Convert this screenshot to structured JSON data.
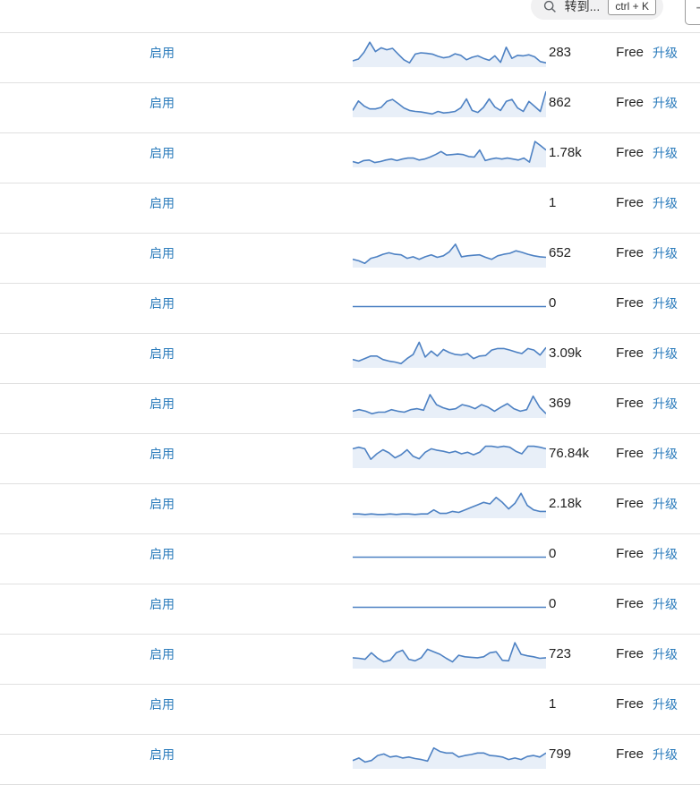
{
  "topbar": {
    "search_placeholder": "转到...",
    "shortcut": "ctrl + K",
    "add_label": "+"
  },
  "colors": {
    "link": "#2c7cbc",
    "text": "#222222",
    "spark_line": "#4d81c3",
    "spark_fill": "#e8eff8",
    "border": "#e0e0e0"
  },
  "table": {
    "rows": [
      {
        "status": "启用",
        "value": "283",
        "plan": "Free",
        "upgrade": "升级",
        "flat": false,
        "spark": [
          0.18,
          0.25,
          0.52,
          0.92,
          0.55,
          0.7,
          0.62,
          0.68,
          0.45,
          0.22,
          0.1,
          0.45,
          0.5,
          0.48,
          0.45,
          0.36,
          0.3,
          0.34,
          0.46,
          0.4,
          0.22,
          0.32,
          0.38,
          0.28,
          0.2,
          0.38,
          0.12,
          0.72,
          0.28,
          0.4,
          0.38,
          0.42,
          0.34,
          0.15,
          0.1
        ]
      },
      {
        "status": "启用",
        "value": "862",
        "plan": "Free",
        "upgrade": "升级",
        "flat": false,
        "spark": [
          0.2,
          0.58,
          0.38,
          0.26,
          0.26,
          0.32,
          0.56,
          0.64,
          0.48,
          0.3,
          0.2,
          0.16,
          0.14,
          0.1,
          0.06,
          0.16,
          0.1,
          0.12,
          0.16,
          0.3,
          0.66,
          0.2,
          0.12,
          0.32,
          0.66,
          0.34,
          0.2,
          0.56,
          0.64,
          0.3,
          0.16,
          0.56,
          0.36,
          0.16,
          0.96
        ]
      },
      {
        "status": "启用",
        "value": "1.78k",
        "plan": "Free",
        "upgrade": "升级",
        "flat": false,
        "spark": [
          0.16,
          0.1,
          0.2,
          0.22,
          0.12,
          0.16,
          0.22,
          0.26,
          0.2,
          0.26,
          0.3,
          0.3,
          0.22,
          0.26,
          0.34,
          0.44,
          0.56,
          0.42,
          0.44,
          0.46,
          0.44,
          0.36,
          0.34,
          0.62,
          0.2,
          0.26,
          0.3,
          0.26,
          0.3,
          0.26,
          0.22,
          0.3,
          0.14,
          0.96,
          0.8,
          0.62
        ]
      },
      {
        "status": "启用",
        "value": "1",
        "plan": "Free",
        "upgrade": "升级",
        "flat": false,
        "spark": null
      },
      {
        "status": "启用",
        "value": "652",
        "plan": "Free",
        "upgrade": "升级",
        "flat": false,
        "spark": [
          0.26,
          0.2,
          0.1,
          0.3,
          0.36,
          0.46,
          0.52,
          0.46,
          0.44,
          0.3,
          0.36,
          0.26,
          0.36,
          0.44,
          0.34,
          0.4,
          0.56,
          0.86,
          0.36,
          0.4,
          0.42,
          0.44,
          0.34,
          0.26,
          0.4,
          0.46,
          0.5,
          0.6,
          0.54,
          0.46,
          0.4,
          0.36,
          0.34
        ]
      },
      {
        "status": "启用",
        "value": "0",
        "plan": "Free",
        "upgrade": "升级",
        "flat": true,
        "spark": null
      },
      {
        "status": "启用",
        "value": "3.09k",
        "plan": "Free",
        "upgrade": "升级",
        "flat": false,
        "spark": [
          0.26,
          0.2,
          0.3,
          0.4,
          0.4,
          0.26,
          0.2,
          0.16,
          0.1,
          0.3,
          0.46,
          0.95,
          0.36,
          0.6,
          0.4,
          0.66,
          0.54,
          0.46,
          0.44,
          0.5,
          0.3,
          0.4,
          0.42,
          0.64,
          0.7,
          0.7,
          0.64,
          0.56,
          0.5,
          0.7,
          0.64,
          0.44,
          0.74
        ]
      },
      {
        "status": "启用",
        "value": "369",
        "plan": "Free",
        "upgrade": "升级",
        "flat": false,
        "spark": [
          0.2,
          0.26,
          0.2,
          0.1,
          0.16,
          0.16,
          0.26,
          0.2,
          0.16,
          0.26,
          0.3,
          0.24,
          0.86,
          0.46,
          0.34,
          0.26,
          0.3,
          0.46,
          0.4,
          0.3,
          0.46,
          0.36,
          0.2,
          0.36,
          0.5,
          0.3,
          0.2,
          0.26,
          0.8,
          0.36,
          0.1
        ]
      },
      {
        "status": "启用",
        "value": "76.84k",
        "plan": "Free",
        "upgrade": "升级",
        "flat": false,
        "spark": [
          0.7,
          0.76,
          0.7,
          0.28,
          0.5,
          0.66,
          0.54,
          0.34,
          0.46,
          0.66,
          0.4,
          0.3,
          0.56,
          0.7,
          0.64,
          0.6,
          0.54,
          0.6,
          0.5,
          0.56,
          0.46,
          0.56,
          0.8,
          0.8,
          0.76,
          0.8,
          0.76,
          0.6,
          0.5,
          0.8,
          0.8,
          0.76,
          0.7
        ]
      },
      {
        "status": "启用",
        "value": "2.18k",
        "plan": "Free",
        "upgrade": "升级",
        "flat": false,
        "spark": [
          0.1,
          0.1,
          0.08,
          0.1,
          0.08,
          0.08,
          0.1,
          0.08,
          0.1,
          0.1,
          0.08,
          0.1,
          0.1,
          0.26,
          0.12,
          0.12,
          0.2,
          0.16,
          0.26,
          0.36,
          0.46,
          0.56,
          0.5,
          0.76,
          0.56,
          0.3,
          0.52,
          0.92,
          0.44,
          0.26,
          0.2,
          0.2
        ]
      },
      {
        "status": "启用",
        "value": "0",
        "plan": "Free",
        "upgrade": "升级",
        "flat": true,
        "spark": null
      },
      {
        "status": "启用",
        "value": "0",
        "plan": "Free",
        "upgrade": "升级",
        "flat": true,
        "spark": null
      },
      {
        "status": "启用",
        "value": "723",
        "plan": "Free",
        "upgrade": "升级",
        "flat": false,
        "spark": [
          0.36,
          0.34,
          0.3,
          0.56,
          0.34,
          0.2,
          0.26,
          0.56,
          0.66,
          0.3,
          0.24,
          0.36,
          0.7,
          0.6,
          0.5,
          0.34,
          0.2,
          0.46,
          0.4,
          0.38,
          0.36,
          0.4,
          0.56,
          0.6,
          0.26,
          0.24,
          0.96,
          0.5,
          0.44,
          0.4,
          0.34,
          0.36
        ]
      },
      {
        "status": "启用",
        "value": "1",
        "plan": "Free",
        "upgrade": "升级",
        "flat": false,
        "spark": null
      },
      {
        "status": "启用",
        "value": "799",
        "plan": "Free",
        "upgrade": "升级",
        "flat": false,
        "spark": [
          0.26,
          0.36,
          0.2,
          0.26,
          0.46,
          0.52,
          0.4,
          0.44,
          0.36,
          0.4,
          0.34,
          0.3,
          0.24,
          0.76,
          0.62,
          0.56,
          0.56,
          0.4,
          0.46,
          0.5,
          0.56,
          0.56,
          0.46,
          0.44,
          0.4,
          0.3,
          0.36,
          0.3,
          0.42,
          0.46,
          0.4,
          0.56
        ]
      }
    ]
  }
}
